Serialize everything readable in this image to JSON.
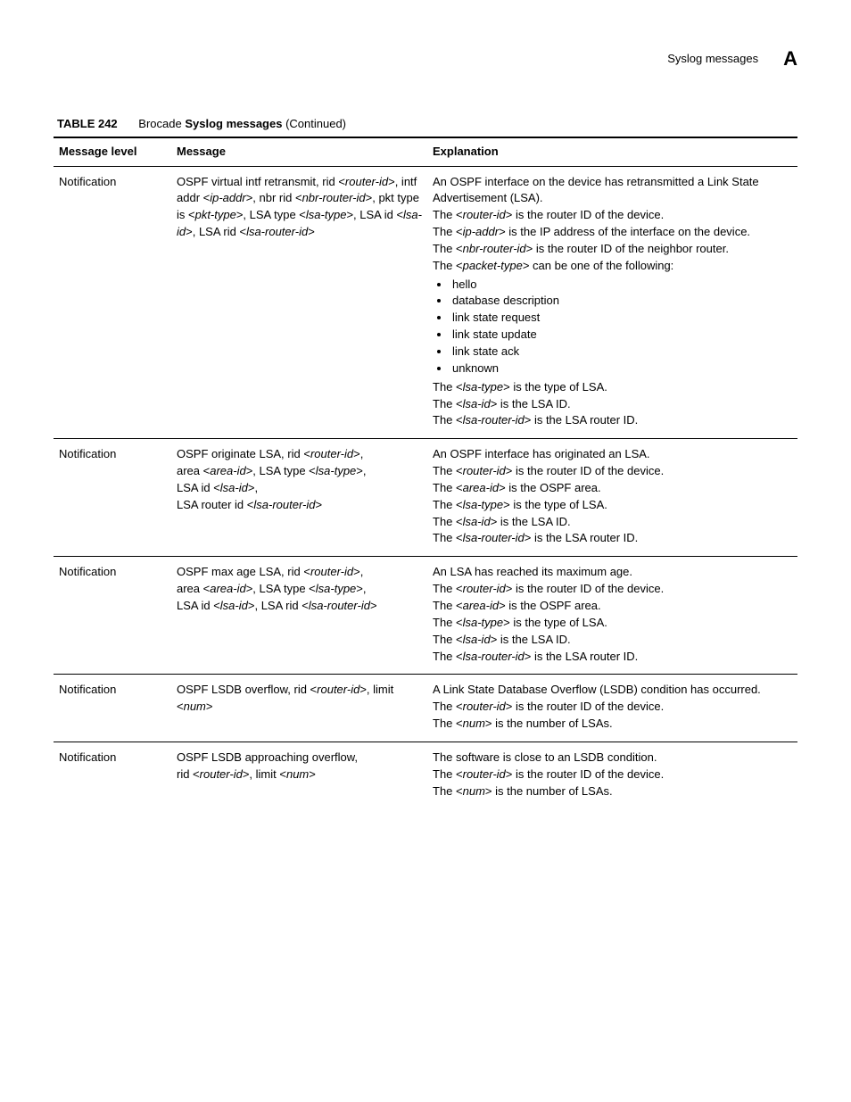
{
  "header": {
    "title": "Syslog messages",
    "letter": "A"
  },
  "caption": {
    "label": "TABLE 242",
    "prefix": "Brocade ",
    "bold": "Syslog messages",
    "suffix": " (Continued)"
  },
  "columns": {
    "level": "Message level",
    "message": "Message",
    "explanation": "Explanation"
  },
  "rows": [
    {
      "level": "Notification",
      "message_segments": [
        {
          "t": "OSPF virtual intf retransmit, rid <"
        },
        {
          "t": "router-id",
          "i": true
        },
        {
          "t": ">, intf addr <"
        },
        {
          "t": "ip-addr",
          "i": true
        },
        {
          "t": ">, nbr rid <"
        },
        {
          "t": "nbr-router-id",
          "i": true
        },
        {
          "t": ">, pkt type is <"
        },
        {
          "t": "pkt-type",
          "i": true
        },
        {
          "t": ">, LSA type <"
        },
        {
          "t": "lsa-type",
          "i": true
        },
        {
          "t": ">, LSA id <"
        },
        {
          "t": "lsa-id",
          "i": true
        },
        {
          "t": ">, LSA rid <"
        },
        {
          "t": "lsa-router-id",
          "i": true
        },
        {
          "t": ">"
        }
      ],
      "explanation": {
        "paragraphs": [
          [
            {
              "t": "An OSPF interface on the device has retransmitted a Link State Advertisement (LSA)."
            }
          ],
          [
            {
              "t": "The <"
            },
            {
              "t": "router-id",
              "i": true
            },
            {
              "t": "> is the router ID of the device."
            }
          ],
          [
            {
              "t": "The <"
            },
            {
              "t": "ip-addr",
              "i": true
            },
            {
              "t": "> is the IP address of the interface on the device."
            }
          ],
          [
            {
              "t": "The <"
            },
            {
              "t": "nbr-router-id",
              "i": true
            },
            {
              "t": "> is the router ID of the neighbor router."
            }
          ],
          [
            {
              "t": "The <"
            },
            {
              "t": "packet-type",
              "i": true
            },
            {
              "t": "> can be one of the following:"
            }
          ]
        ],
        "list": [
          "hello",
          "database description",
          "link state request",
          "link state update",
          "link state ack",
          "unknown"
        ],
        "paragraphs_after": [
          [
            {
              "t": "The <"
            },
            {
              "t": "lsa-type",
              "i": true
            },
            {
              "t": "> is the type of LSA."
            }
          ],
          [
            {
              "t": "The <"
            },
            {
              "t": "lsa-id",
              "i": true
            },
            {
              "t": "> is the LSA ID."
            }
          ],
          [
            {
              "t": "The <"
            },
            {
              "t": "lsa-router-id",
              "i": true
            },
            {
              "t": "> is the LSA router ID."
            }
          ]
        ]
      }
    },
    {
      "level": "Notification",
      "message_segments": [
        {
          "t": "OSPF originate LSA, rid <"
        },
        {
          "t": "router-id",
          "i": true
        },
        {
          "t": ">,"
        },
        {
          "br": true
        },
        {
          "t": "area <"
        },
        {
          "t": "area-id",
          "i": true
        },
        {
          "t": ">, LSA type <"
        },
        {
          "t": "lsa-type",
          "i": true
        },
        {
          "t": ">,"
        },
        {
          "br": true
        },
        {
          "t": "LSA id <"
        },
        {
          "t": "lsa-id",
          "i": true
        },
        {
          "t": ">,"
        },
        {
          "br": true
        },
        {
          "t": "LSA router id <"
        },
        {
          "t": "lsa-router-id",
          "i": true
        },
        {
          "t": ">"
        }
      ],
      "explanation": {
        "paragraphs": [
          [
            {
              "t": "An OSPF interface has originated an LSA."
            }
          ],
          [
            {
              "t": "The <"
            },
            {
              "t": "router-id",
              "i": true
            },
            {
              "t": "> is the router ID of the device."
            }
          ],
          [
            {
              "t": "The <"
            },
            {
              "t": "area-id",
              "i": true
            },
            {
              "t": "> is the OSPF area."
            }
          ],
          [
            {
              "t": "The <"
            },
            {
              "t": "lsa-type",
              "i": true
            },
            {
              "t": "> is the type of LSA."
            }
          ],
          [
            {
              "t": "The <"
            },
            {
              "t": "lsa-id",
              "i": true
            },
            {
              "t": "> is the LSA ID."
            }
          ],
          [
            {
              "t": "The <"
            },
            {
              "t": "lsa-router-id",
              "i": true
            },
            {
              "t": "> is the LSA router ID."
            }
          ]
        ]
      }
    },
    {
      "level": "Notification",
      "message_segments": [
        {
          "t": "OSPF max age LSA, rid <"
        },
        {
          "t": "router-id",
          "i": true
        },
        {
          "t": ">,"
        },
        {
          "br": true
        },
        {
          "t": "area <"
        },
        {
          "t": "area-id",
          "i": true
        },
        {
          "t": ">, LSA type <"
        },
        {
          "t": "lsa-type",
          "i": true
        },
        {
          "t": ">,"
        },
        {
          "br": true
        },
        {
          "t": "LSA id <"
        },
        {
          "t": "lsa-id",
          "i": true
        },
        {
          "t": ">, LSA rid <"
        },
        {
          "t": "lsa-router-id",
          "i": true
        },
        {
          "t": ">"
        }
      ],
      "explanation": {
        "paragraphs": [
          [
            {
              "t": "An LSA has reached its maximum age."
            }
          ],
          [
            {
              "t": "The <"
            },
            {
              "t": "router-id",
              "i": true
            },
            {
              "t": "> is the router ID of the device."
            }
          ],
          [
            {
              "t": "The <"
            },
            {
              "t": "area-id",
              "i": true
            },
            {
              "t": "> is the OSPF area."
            }
          ],
          [
            {
              "t": "The <"
            },
            {
              "t": "lsa-type",
              "i": true
            },
            {
              "t": "> is the type of LSA."
            }
          ],
          [
            {
              "t": "The <"
            },
            {
              "t": "lsa-id",
              "i": true
            },
            {
              "t": "> is the LSA ID."
            }
          ],
          [
            {
              "t": "The <"
            },
            {
              "t": "lsa-router-id",
              "i": true
            },
            {
              "t": "> is the LSA router ID."
            }
          ]
        ]
      }
    },
    {
      "level": "Notification",
      "message_segments": [
        {
          "t": "OSPF LSDB overflow, rid <"
        },
        {
          "t": "router-id",
          "i": true
        },
        {
          "t": ">, limit <"
        },
        {
          "t": "num",
          "i": true
        },
        {
          "t": ">"
        }
      ],
      "explanation": {
        "paragraphs": [
          [
            {
              "t": "A Link State Database Overflow (LSDB) condition has occurred."
            }
          ],
          [
            {
              "t": "The <"
            },
            {
              "t": "router-id",
              "i": true
            },
            {
              "t": "> is the router ID of the device."
            }
          ],
          [
            {
              "t": "The <"
            },
            {
              "t": "num",
              "i": true
            },
            {
              "t": "> is the number of LSAs."
            }
          ]
        ]
      }
    },
    {
      "level": "Notification",
      "message_segments": [
        {
          "t": "OSPF LSDB approaching overflow,"
        },
        {
          "br": true
        },
        {
          "t": "rid <"
        },
        {
          "t": "router-id",
          "i": true
        },
        {
          "t": ">, limit <"
        },
        {
          "t": "num",
          "i": true
        },
        {
          "t": ">"
        }
      ],
      "explanation": {
        "paragraphs": [
          [
            {
              "t": "The software is close to an LSDB condition."
            }
          ],
          [
            {
              "t": "The <"
            },
            {
              "t": "router-id",
              "i": true
            },
            {
              "t": "> is the router ID of the device."
            }
          ],
          [
            {
              "t": "The <"
            },
            {
              "t": "num",
              "i": true
            },
            {
              "t": "> is the number of LSAs."
            }
          ]
        ]
      }
    }
  ]
}
